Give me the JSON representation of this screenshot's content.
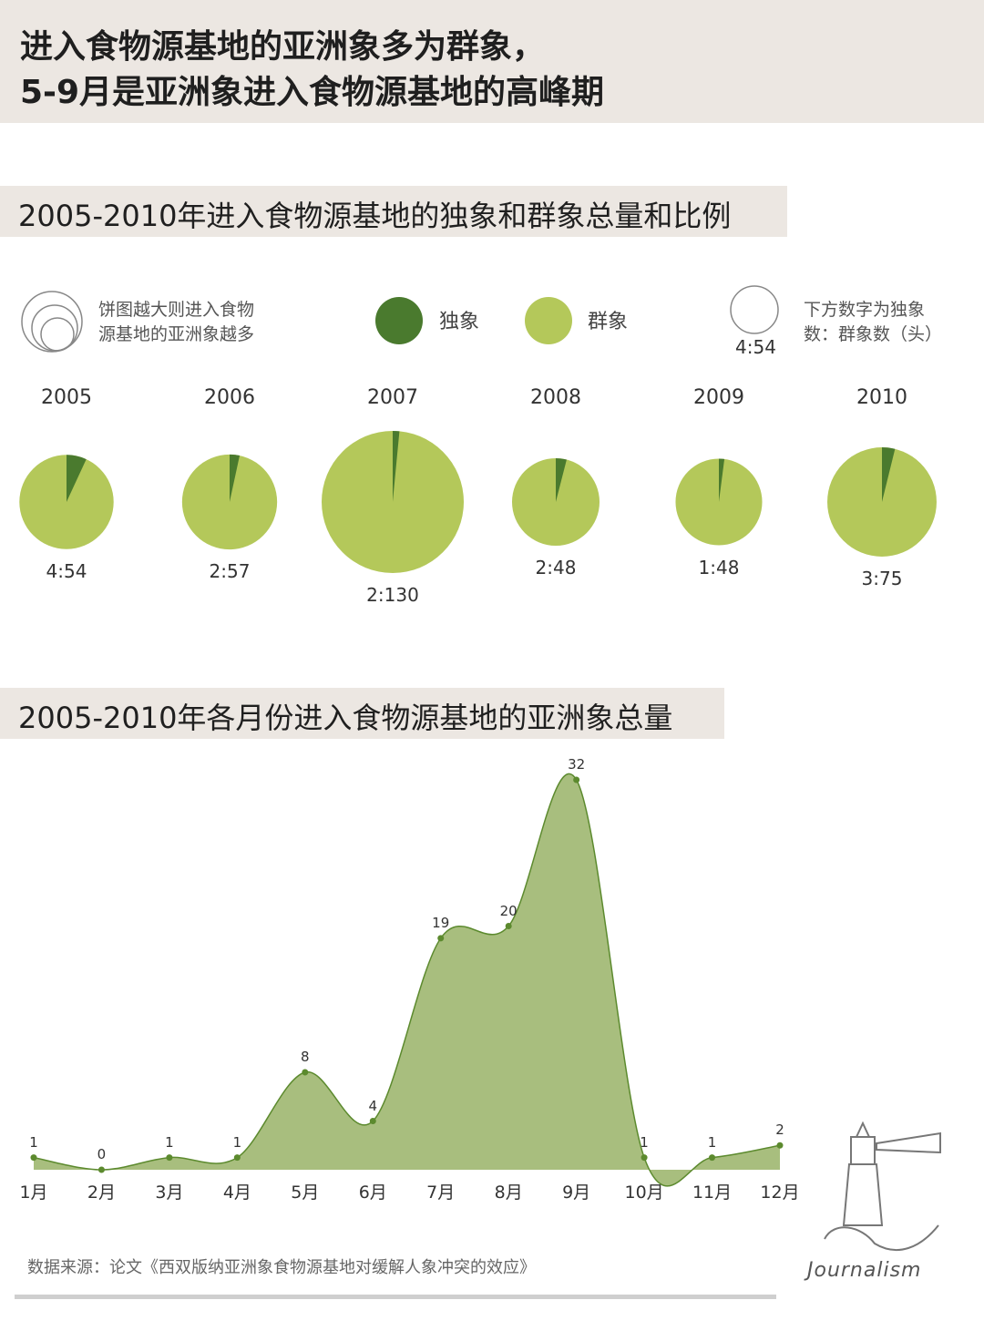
{
  "header": {
    "title_line1": "进入食物源基地的亚洲象多为群象，",
    "title_line2": "5-9月是亚洲象进入食物源基地的高峰期"
  },
  "colors": {
    "solitary": "#4a7a2e",
    "herd": "#b4c85a",
    "area": "#a8be7e",
    "line": "#5c8a2e"
  },
  "legend": {
    "size_note": "饼图越大则进入食物源基地的亚洲象越多",
    "size_note_l1": "饼图越大则进入食物",
    "size_note_l2": "源基地的亚洲象越多",
    "solitary": "独象",
    "herd": "群象",
    "example_ratio": "4:54",
    "ratio_note_l1": "下方数字为独象",
    "ratio_note_l2": "数：群象数（头）"
  },
  "section1": {
    "title": "2005-2010年进入食物源基地的独象和群象总量和比例"
  },
  "section2": {
    "title": "2005-2010年各月份进入食物源基地的亚洲象总量"
  },
  "chart_data": [
    {
      "type": "pie",
      "title": "2005-2010年进入食物源基地的独象和群象总量和比例",
      "series_names": [
        "独象",
        "群象"
      ],
      "pies": [
        {
          "year": "2005",
          "solitary": 4,
          "herd": 54,
          "label": "4:54"
        },
        {
          "year": "2006",
          "solitary": 2,
          "herd": 57,
          "label": "2:57"
        },
        {
          "year": "2007",
          "solitary": 2,
          "herd": 130,
          "label": "2:130"
        },
        {
          "year": "2008",
          "solitary": 2,
          "herd": 48,
          "label": "2:48"
        },
        {
          "year": "2009",
          "solitary": 1,
          "herd": 48,
          "label": "1:48"
        },
        {
          "year": "2010",
          "solitary": 3,
          "herd": 75,
          "label": "3:75"
        }
      ]
    },
    {
      "type": "area",
      "title": "2005-2010年各月份进入食物源基地的亚洲象总量",
      "categories": [
        "1月",
        "2月",
        "3月",
        "4月",
        "5月",
        "6月",
        "7月",
        "8月",
        "9月",
        "10月",
        "11月",
        "12月"
      ],
      "values": [
        1,
        0,
        1,
        1,
        8,
        4,
        19,
        20,
        32,
        1,
        1,
        2
      ],
      "value_labels": [
        "1",
        "0",
        "1",
        "1",
        "8",
        "4",
        "19",
        "20",
        "32",
        "1",
        "1",
        "2"
      ],
      "ylim": [
        0,
        32
      ]
    }
  ],
  "source": "数据来源：论文《西双版纳亚洲象食物源基地对缓解人象冲突的效应》",
  "logo_text": "Journalism"
}
